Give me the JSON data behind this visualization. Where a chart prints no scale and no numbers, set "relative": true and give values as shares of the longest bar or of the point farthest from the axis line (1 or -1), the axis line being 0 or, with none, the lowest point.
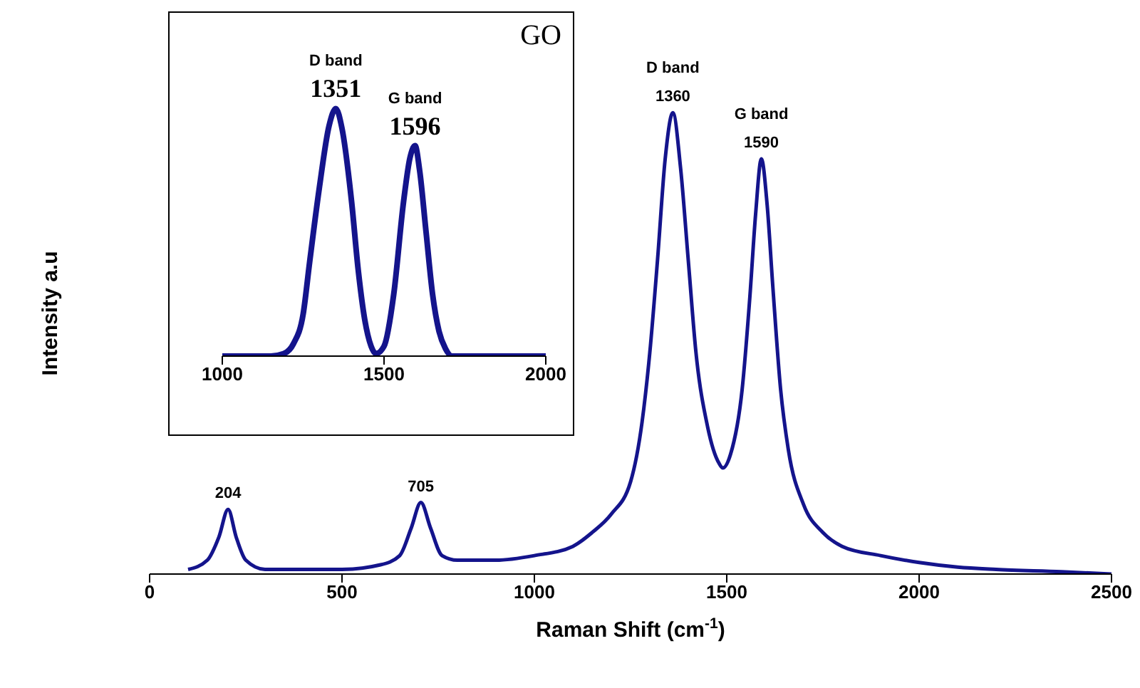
{
  "chart_data": [
    {
      "type": "line",
      "relative": true,
      "xlabel": "Raman Shift (cm$^{-1}$)",
      "ylabel": "Intensity a.u",
      "xlim": [
        0,
        2500
      ],
      "xticks": [
        0,
        500,
        1000,
        1500,
        2000,
        2500
      ],
      "x": [
        100,
        150,
        180,
        204,
        225,
        250,
        300,
        400,
        500,
        600,
        650,
        680,
        705,
        730,
        760,
        800,
        900,
        1000,
        1100,
        1150,
        1200,
        1250,
        1280,
        1300,
        1320,
        1340,
        1360,
        1380,
        1400,
        1420,
        1450,
        1480,
        1490,
        1510,
        1540,
        1560,
        1575,
        1590,
        1605,
        1620,
        1640,
        1660,
        1700,
        1750,
        1800,
        1900,
        2000,
        2100,
        2200,
        2370,
        2500
      ],
      "series": [
        {
          "color": "#14148c",
          "values": [
            0.01,
            0.03,
            0.08,
            0.14,
            0.08,
            0.03,
            0.01,
            0.01,
            0.01,
            0.02,
            0.04,
            0.1,
            0.155,
            0.1,
            0.04,
            0.03,
            0.03,
            0.04,
            0.06,
            0.09,
            0.13,
            0.2,
            0.33,
            0.48,
            0.68,
            0.9,
            1,
            0.88,
            0.68,
            0.48,
            0.32,
            0.24,
            0.23,
            0.26,
            0.4,
            0.6,
            0.78,
            0.9,
            0.8,
            0.62,
            0.4,
            0.27,
            0.15,
            0.09,
            0.06,
            0.04,
            0.025,
            0.015,
            0.01,
            0.005,
            0
          ]
        }
      ],
      "annotations": [
        {
          "text": "204",
          "x": 204,
          "y": 0.14
        },
        {
          "text": "705",
          "x": 705,
          "y": 0.155
        },
        {
          "text": "D band",
          "x": 1360,
          "y": 1
        },
        {
          "text": "1360",
          "x": 1360,
          "y": 1
        },
        {
          "text": "G band",
          "x": 1590,
          "y": 0.9
        },
        {
          "text": "1590",
          "x": 1590,
          "y": 0.9
        }
      ]
    },
    {
      "type": "line",
      "relative": true,
      "xlim": [
        1000,
        2000
      ],
      "xticks": [
        1000,
        1500,
        2000
      ],
      "x": [
        1000,
        1150,
        1190,
        1220,
        1250,
        1270,
        1300,
        1330,
        1351,
        1370,
        1400,
        1420,
        1440,
        1460,
        1475,
        1500,
        1530,
        1560,
        1580,
        1596,
        1610,
        1630,
        1650,
        1670,
        1690,
        1710,
        1800,
        2000
      ],
      "series": [
        {
          "color": "#14148c",
          "values": [
            0,
            0,
            0.01,
            0.05,
            0.17,
            0.38,
            0.68,
            0.93,
            1,
            0.92,
            0.62,
            0.35,
            0.15,
            0.04,
            0.01,
            0.04,
            0.25,
            0.62,
            0.8,
            0.85,
            0.75,
            0.5,
            0.25,
            0.1,
            0.03,
            0,
            0,
            0
          ]
        }
      ],
      "annotations": [
        {
          "text": "D band",
          "x": 1351,
          "y": 1
        },
        {
          "text": "1351",
          "x": 1351,
          "y": 1
        },
        {
          "text": "G band",
          "x": 1596,
          "y": 0.85
        },
        {
          "text": "1596",
          "x": 1596,
          "y": 0.85
        },
        "GO"
      ]
    }
  ]
}
